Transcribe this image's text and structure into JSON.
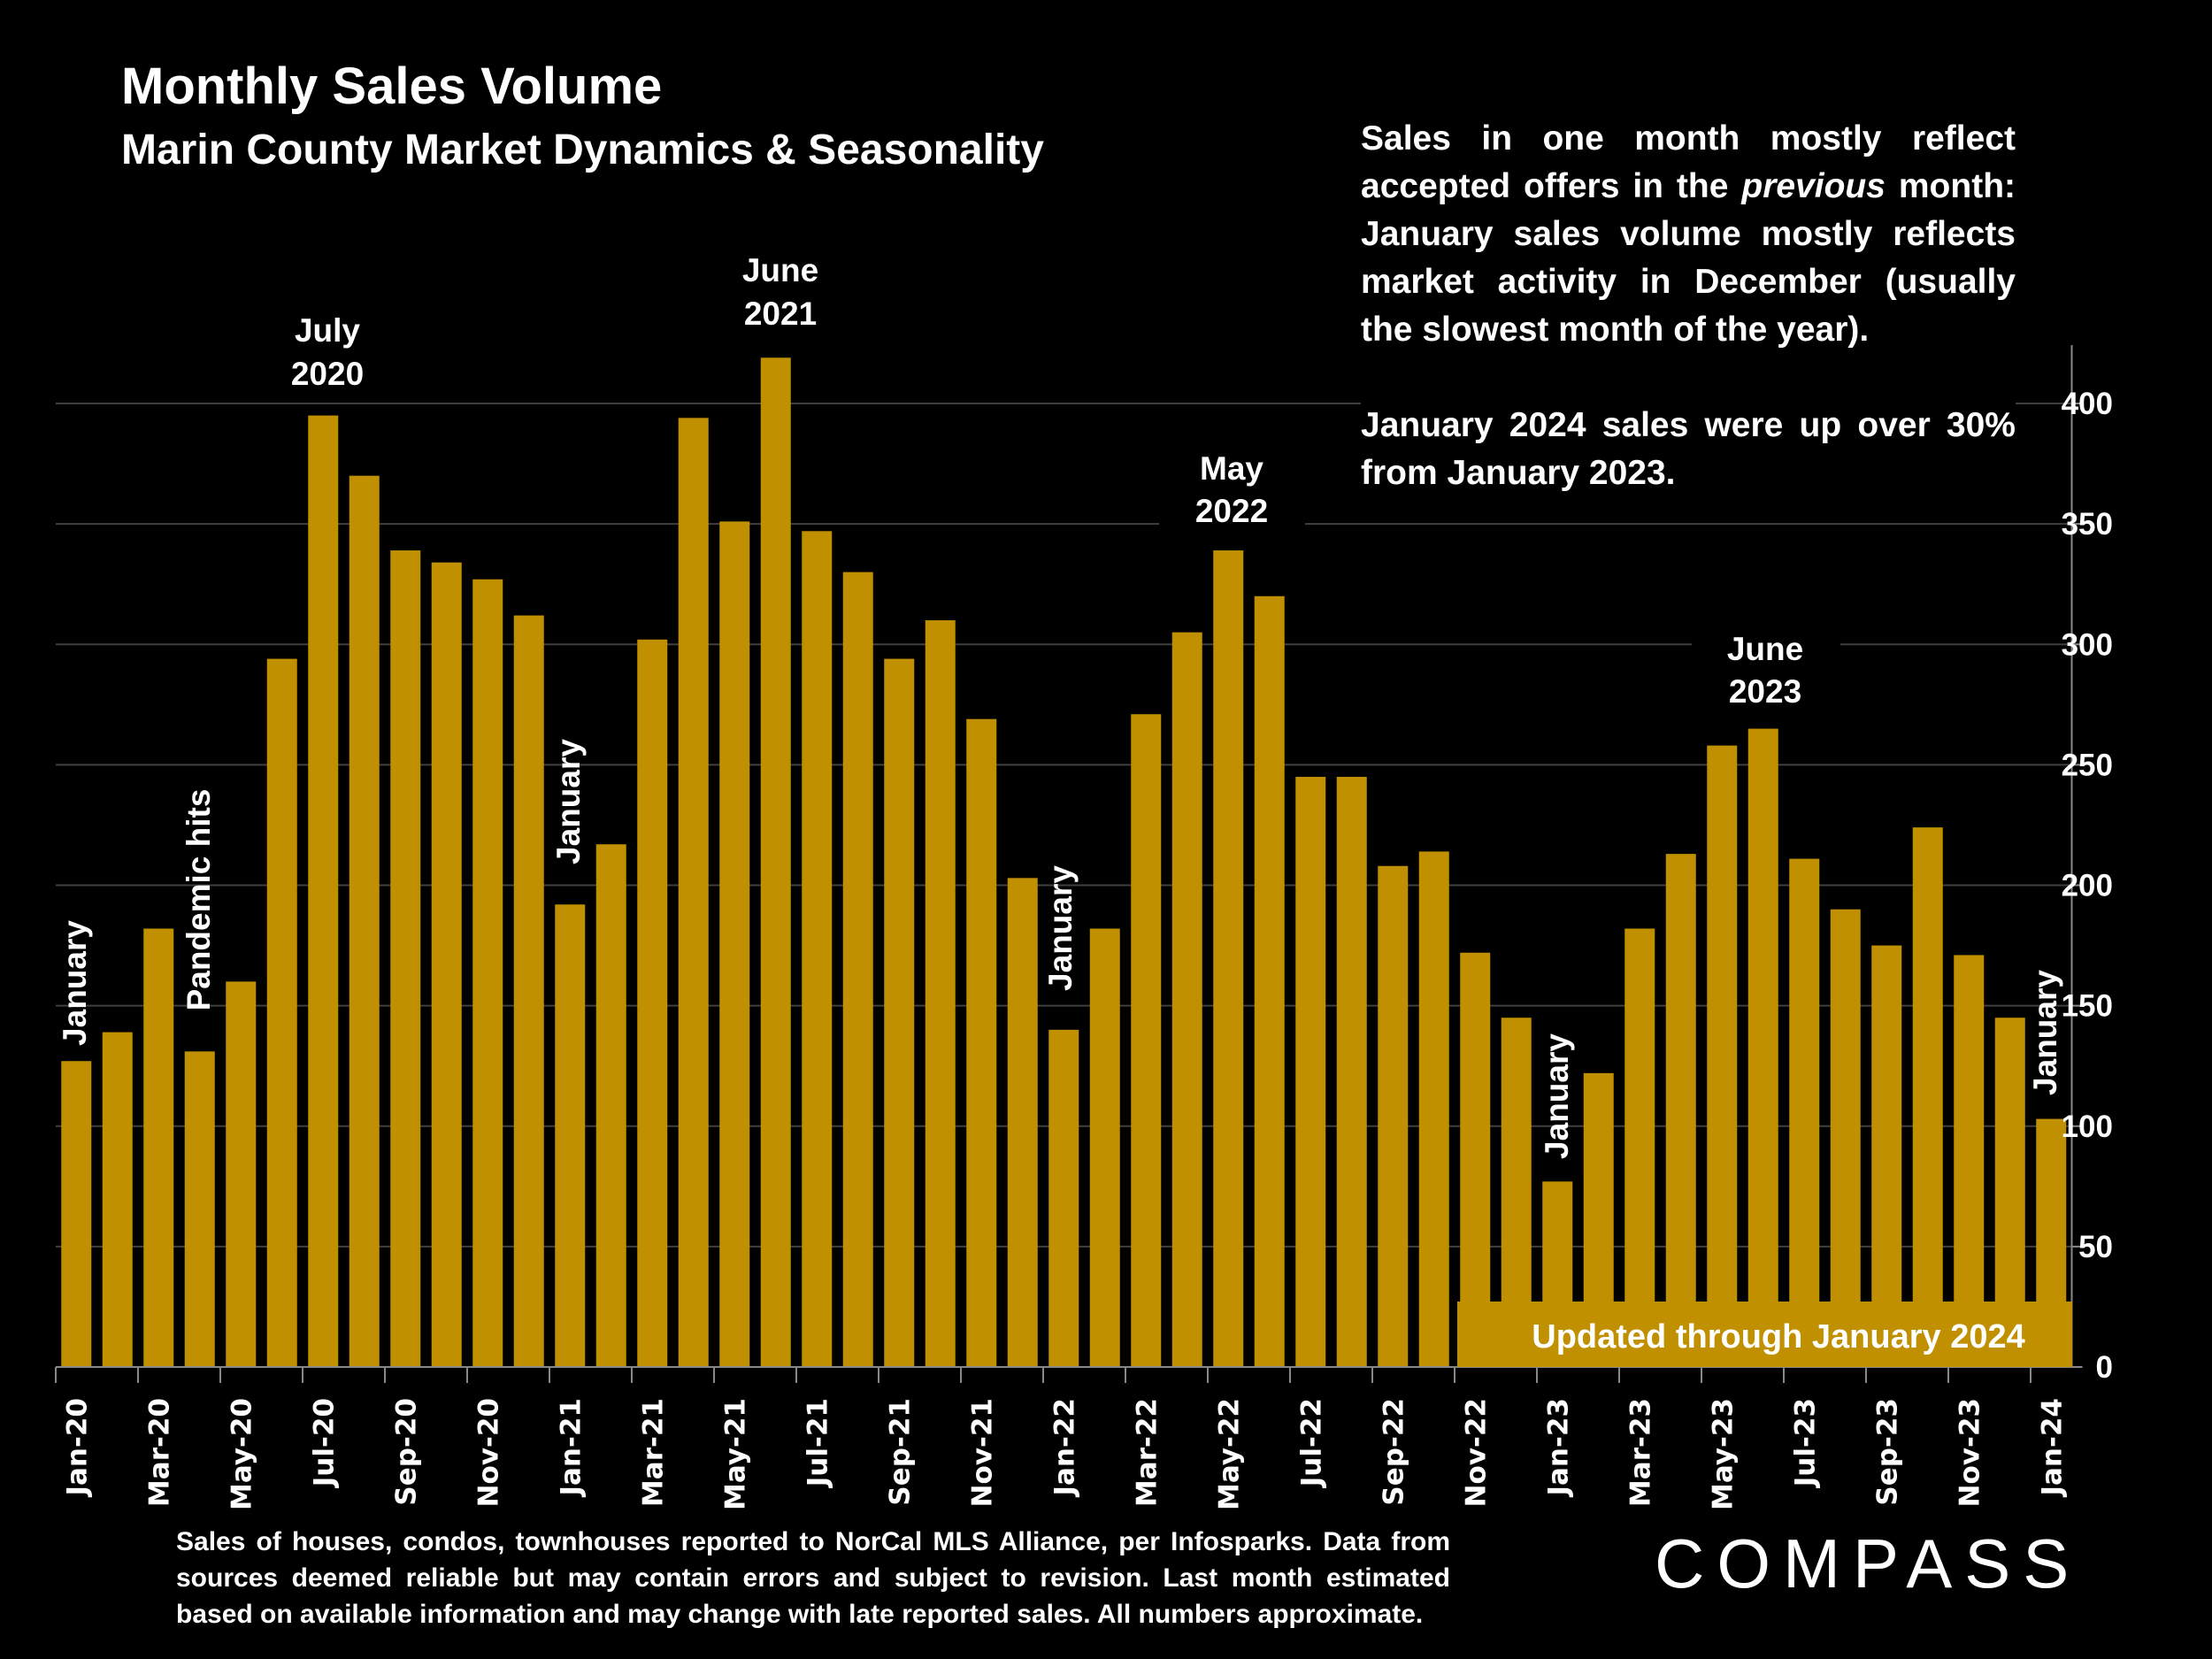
{
  "header": {
    "title": "Monthly Sales Volume",
    "subtitle": "Marin County Market Dynamics & Seasonality"
  },
  "note": {
    "p1_before": "Sales in one month mostly reflect accepted offers in the ",
    "p1_em": "previous",
    "p1_after": " month: January sales volume mostly reflects market activity in December (usually the slowest month of the year).",
    "p2": "January 2024 sales were up over 30% from January 2023."
  },
  "footnote": "Sales of houses, condos, townhouses reported to NorCal MLS Alliance, per Infosparks. Data from sources deemed reliable but may contain errors and subject to revision. Last month estimated based on available information and may change with late reported sales. All numbers approximate.",
  "logo": "COMPASS",
  "updated_label": "Updated through January 2024",
  "colors": {
    "bar": "#C09000",
    "grid": "#404040",
    "background": "#000000"
  },
  "chart_data": {
    "type": "bar",
    "title": "Monthly Sales Volume",
    "xlabel": "",
    "ylabel": "",
    "ylim": [
      0,
      425
    ],
    "yticks": [
      0,
      50,
      100,
      150,
      200,
      250,
      300,
      350,
      400
    ],
    "grid": true,
    "categories": [
      "Jan-20",
      "Feb-20",
      "Mar-20",
      "Apr-20",
      "May-20",
      "Jun-20",
      "Jul-20",
      "Aug-20",
      "Sep-20",
      "Oct-20",
      "Nov-20",
      "Dec-20",
      "Jan-21",
      "Feb-21",
      "Mar-21",
      "Apr-21",
      "May-21",
      "Jun-21",
      "Jul-21",
      "Aug-21",
      "Sep-21",
      "Oct-21",
      "Nov-21",
      "Dec-21",
      "Jan-22",
      "Feb-22",
      "Mar-22",
      "Apr-22",
      "May-22",
      "Jun-22",
      "Jul-22",
      "Aug-22",
      "Sep-22",
      "Oct-22",
      "Nov-22",
      "Dec-22",
      "Jan-23",
      "Feb-23",
      "Mar-23",
      "Apr-23",
      "May-23",
      "Jun-23",
      "Jul-23",
      "Aug-23",
      "Sep-23",
      "Oct-23",
      "Nov-23",
      "Dec-23",
      "Jan-24"
    ],
    "values": [
      127,
      139,
      182,
      131,
      160,
      294,
      395,
      370,
      339,
      334,
      327,
      312,
      192,
      217,
      302,
      394,
      351,
      419,
      347,
      330,
      294,
      310,
      269,
      203,
      140,
      182,
      271,
      305,
      339,
      320,
      245,
      245,
      208,
      214,
      172,
      145,
      77,
      122,
      182,
      213,
      258,
      265,
      211,
      190,
      175,
      224,
      171,
      145,
      103
    ],
    "annotations": {
      "jan20": "January",
      "pandemic": "Pandemic hits",
      "jul20_a": "July",
      "jul20_b": "2020",
      "jan21": "January",
      "jun21_a": "June",
      "jun21_b": "2021",
      "jan22": "January",
      "may22_a": "May",
      "may22_b": "2022",
      "jan23": "January",
      "jun23_a": "June",
      "jun23_b": "2023",
      "jan24": "January"
    }
  }
}
